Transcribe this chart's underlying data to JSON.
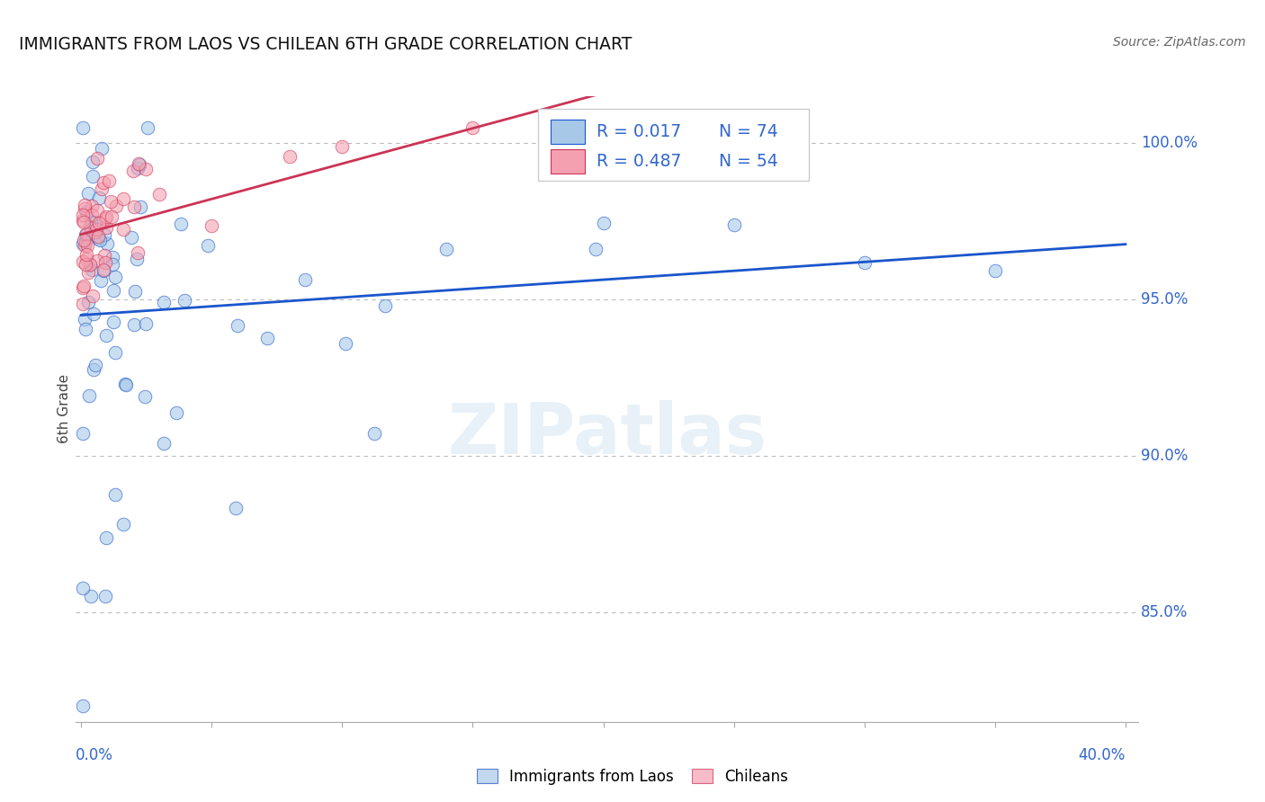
{
  "title": "IMMIGRANTS FROM LAOS VS CHILEAN 6TH GRADE CORRELATION CHART",
  "source": "Source: ZipAtlas.com",
  "ylabel": "6th Grade",
  "ytick_labels": [
    "85.0%",
    "90.0%",
    "95.0%",
    "100.0%"
  ],
  "ytick_values": [
    0.85,
    0.9,
    0.95,
    1.0
  ],
  "xlim": [
    -0.002,
    0.405
  ],
  "ylim": [
    0.815,
    1.015
  ],
  "legend_r1": "R = 0.017",
  "legend_n1": "N = 74",
  "legend_r2": "R = 0.487",
  "legend_n2": "N = 54",
  "blue_color": "#a8c8e8",
  "pink_color": "#f4a0b0",
  "trendline_blue": "#1a56cc",
  "trendline_pink": "#cc3355",
  "background": "#ffffff",
  "blue_seed": 1234,
  "pink_seed": 5678
}
